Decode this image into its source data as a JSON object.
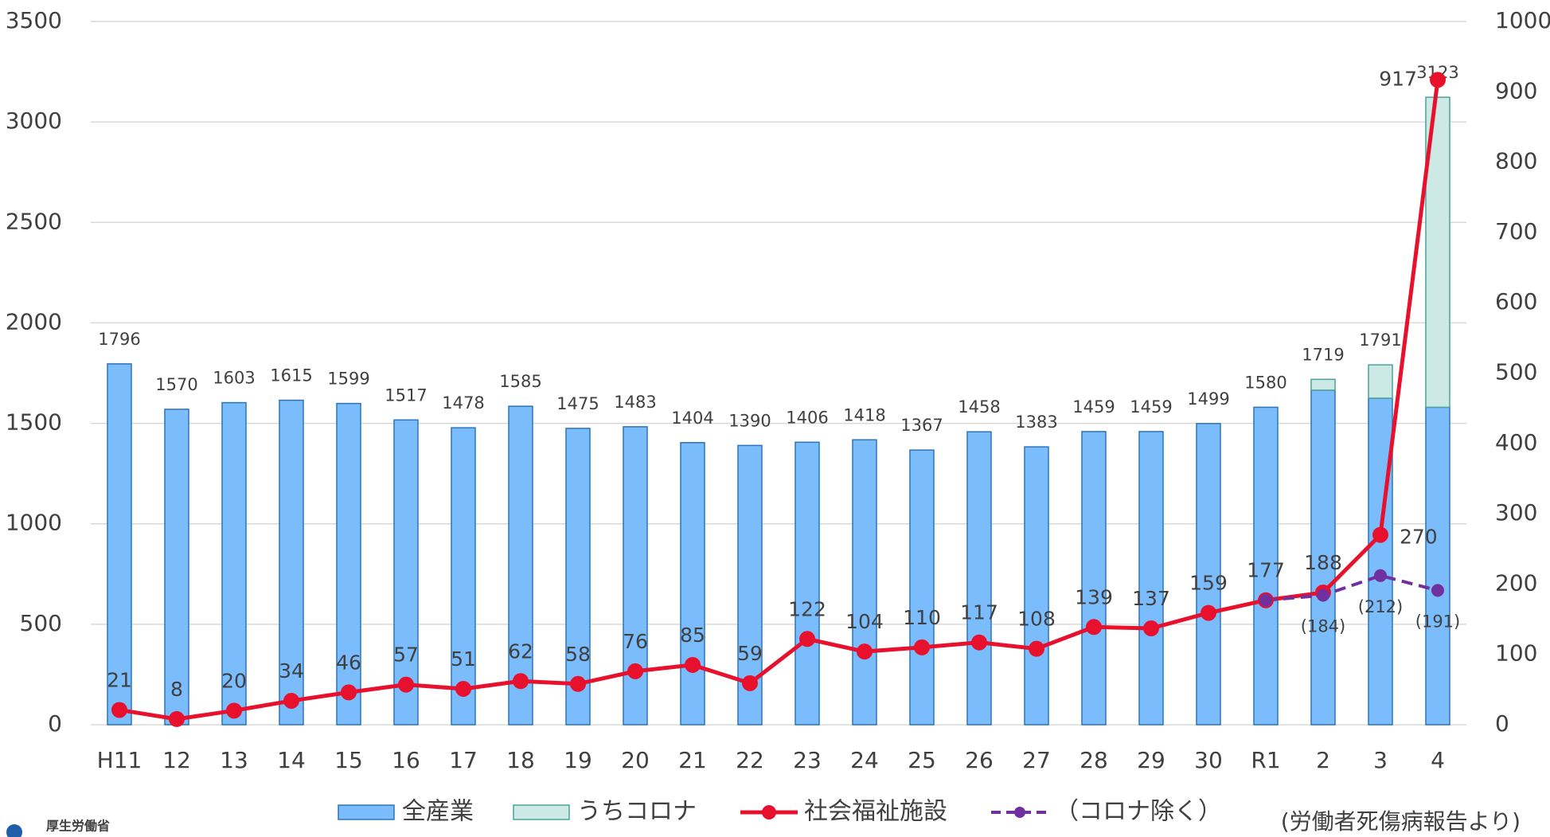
{
  "chart_data": {
    "type": "bar-line",
    "categories": [
      "H11",
      "12",
      "13",
      "14",
      "15",
      "16",
      "17",
      "18",
      "19",
      "20",
      "21",
      "22",
      "23",
      "24",
      "25",
      "26",
      "27",
      "28",
      "29",
      "30",
      "R1",
      "2",
      "3",
      "4"
    ],
    "series": [
      {
        "name": "全産業",
        "type": "bar",
        "color": "#7abcfc",
        "values": [
          1796,
          1570,
          1603,
          1615,
          1599,
          1517,
          1478,
          1585,
          1475,
          1483,
          1404,
          1390,
          1406,
          1418,
          1367,
          1458,
          1383,
          1459,
          1459,
          1499,
          1580,
          1665,
          1625,
          1580
        ]
      },
      {
        "name": "うちコロナ",
        "type": "bar",
        "color": "#cde9e5",
        "values": [
          null,
          null,
          null,
          null,
          null,
          null,
          null,
          null,
          null,
          null,
          null,
          null,
          null,
          null,
          null,
          null,
          null,
          null,
          null,
          null,
          null,
          54,
          166,
          1543
        ]
      },
      {
        "name": "社会福祉施設",
        "type": "line",
        "axis": "y2",
        "color": "#e8112d",
        "values": [
          21,
          8,
          20,
          34,
          46,
          57,
          51,
          62,
          58,
          76,
          85,
          59,
          122,
          104,
          110,
          117,
          108,
          139,
          137,
          159,
          177,
          188,
          270,
          917
        ]
      },
      {
        "name": "（コロナ除く）",
        "type": "line",
        "dashed": true,
        "axis": "y2",
        "color": "#7030a0",
        "values": [
          null,
          null,
          null,
          null,
          null,
          null,
          null,
          null,
          null,
          null,
          null,
          null,
          null,
          null,
          null,
          null,
          null,
          null,
          null,
          null,
          177,
          184,
          212,
          191
        ],
        "value_labels": [
          null,
          null,
          null,
          null,
          null,
          null,
          null,
          null,
          null,
          null,
          null,
          null,
          null,
          null,
          null,
          null,
          null,
          null,
          null,
          null,
          null,
          "(184)",
          "(212)",
          "(191)"
        ]
      }
    ],
    "total_labels": [
      1796,
      1570,
      1603,
      1615,
      1599,
      1517,
      1478,
      1585,
      1475,
      1483,
      1404,
      1390,
      1406,
      1418,
      1367,
      1458,
      1383,
      1459,
      1459,
      1499,
      1580,
      1719,
      1791,
      3123
    ],
    "ylim": [
      0,
      3500
    ],
    "yticks": [
      0,
      500,
      1000,
      1500,
      2000,
      2500,
      3000,
      3500
    ],
    "y2lim": [
      0,
      1000
    ],
    "y2ticks": [
      0,
      100,
      200,
      300,
      400,
      500,
      600,
      700,
      800,
      900,
      1000
    ],
    "grid": true,
    "legend": "bottom",
    "source": "(労働者死傷病報告より)",
    "logo": "厚生労働省"
  }
}
